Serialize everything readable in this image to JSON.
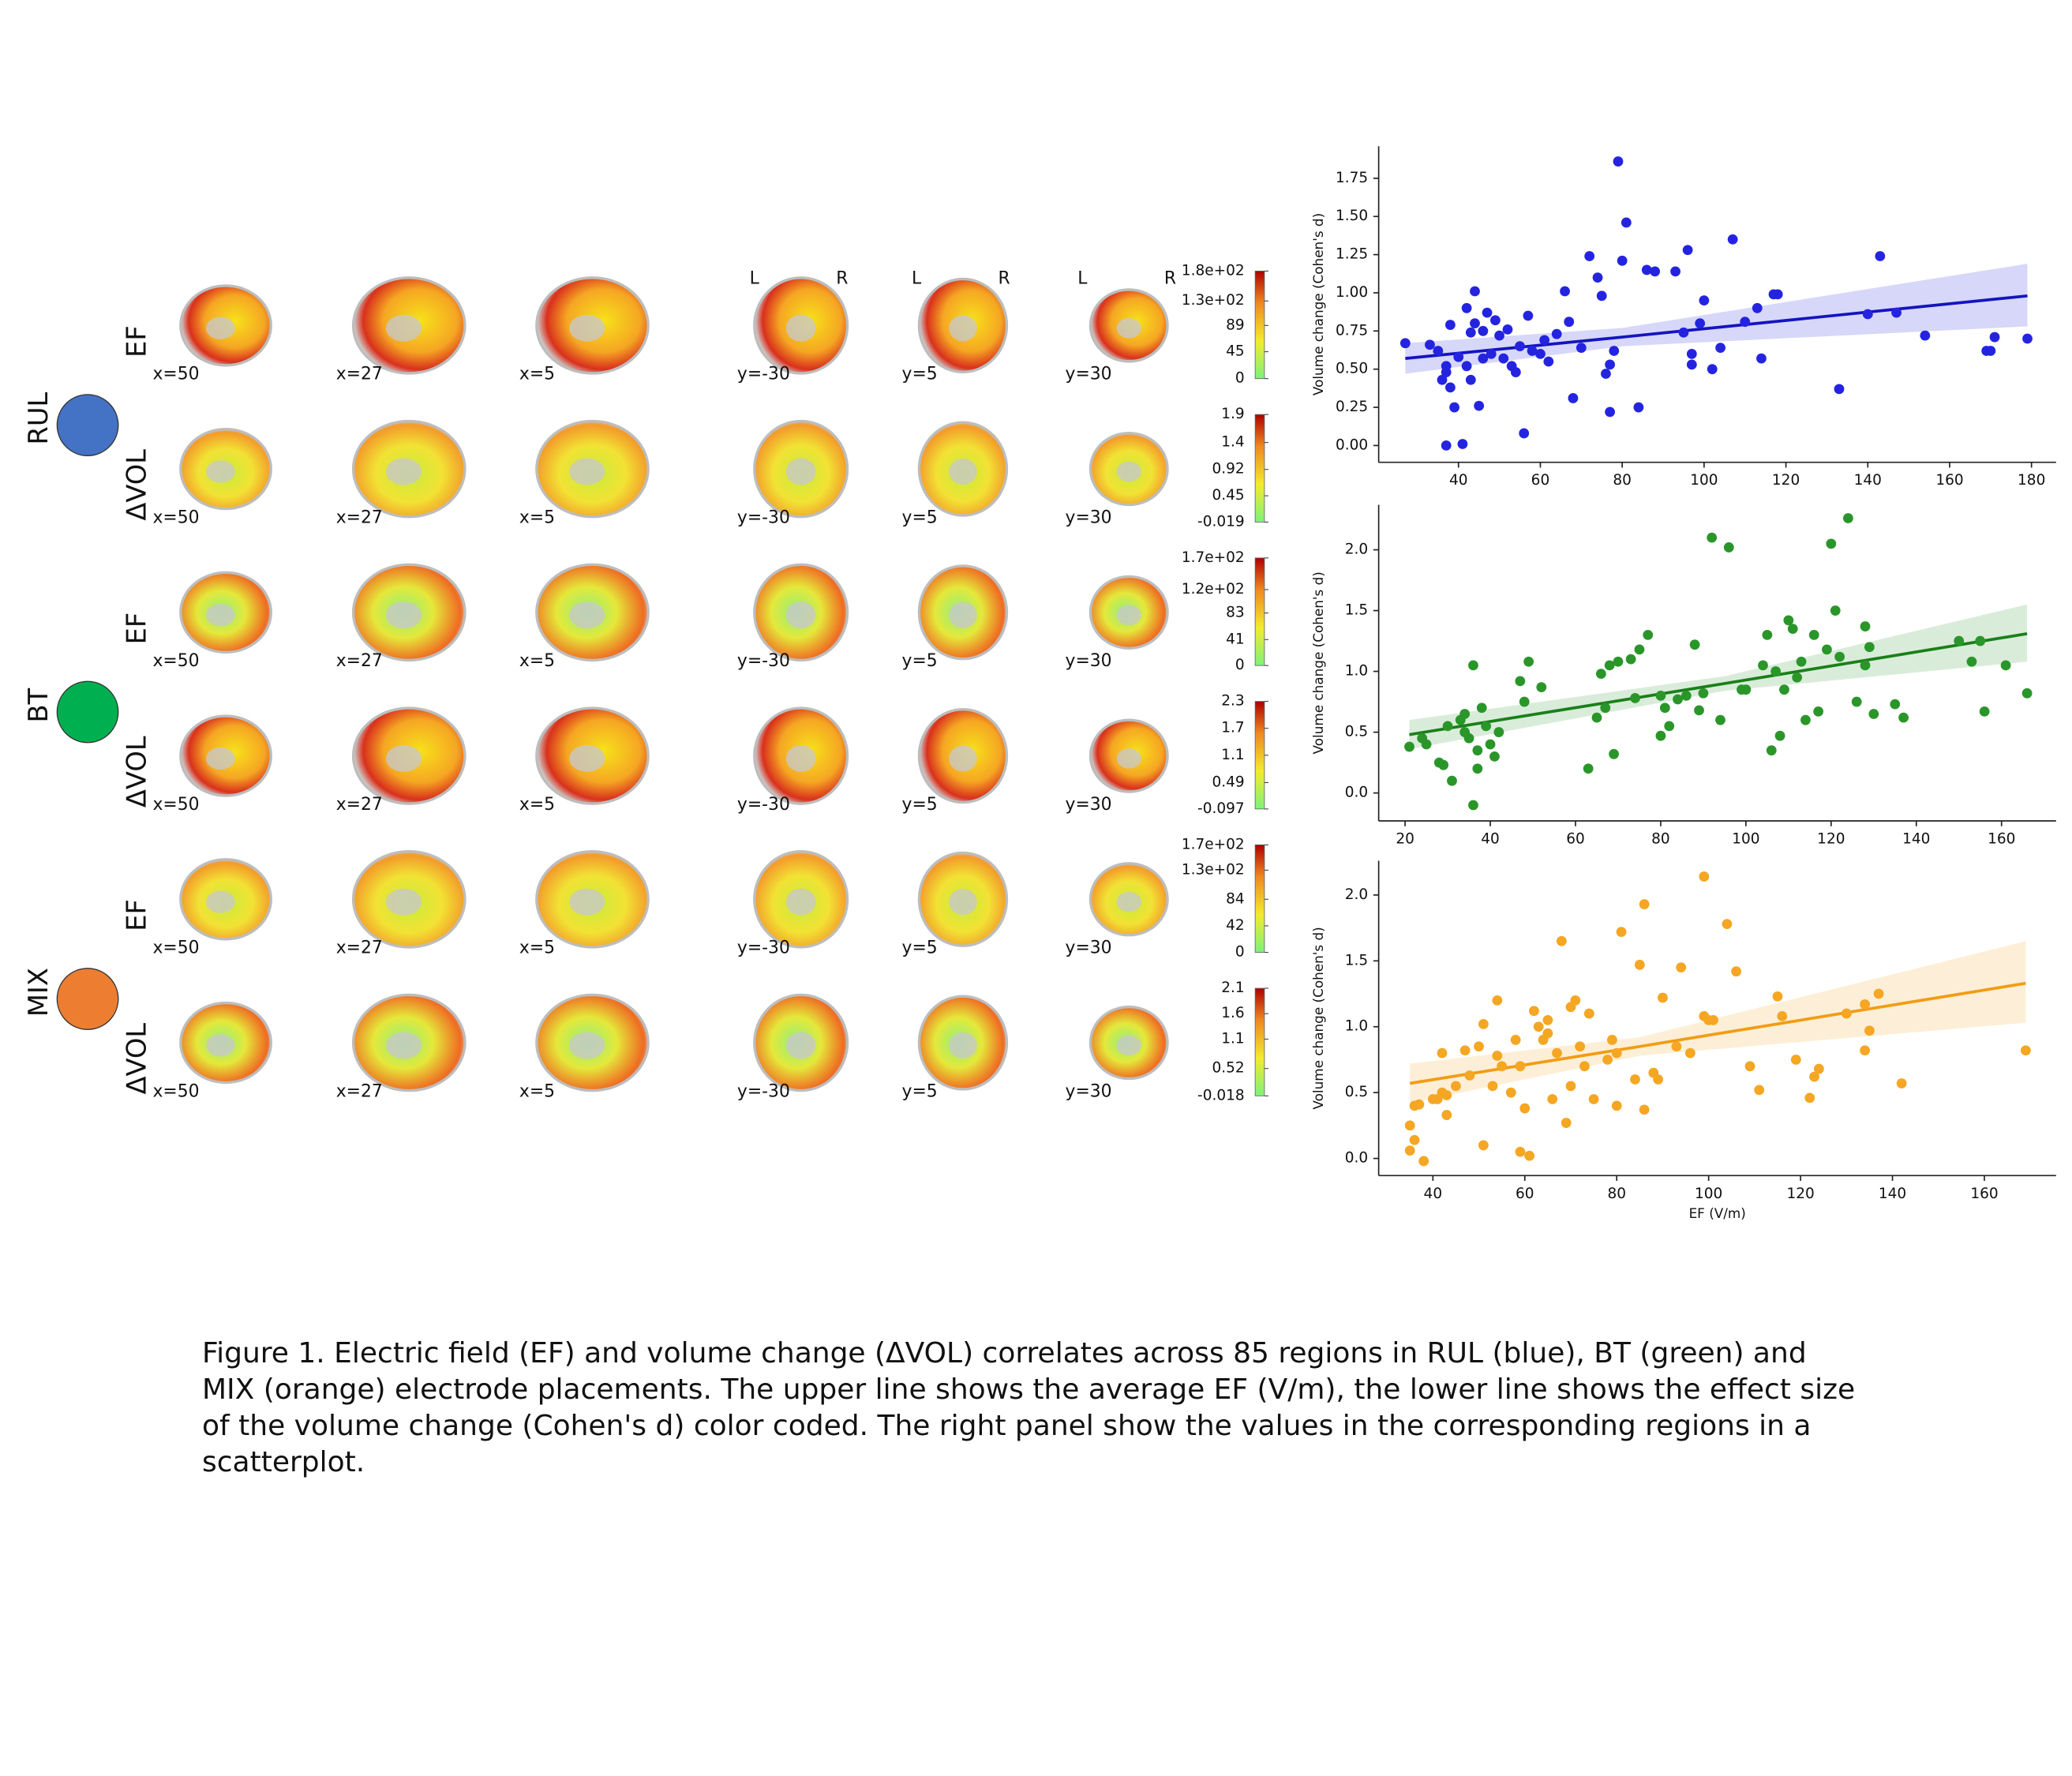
{
  "figure": {
    "slice_labels": [
      "x=50",
      "x=27",
      "x=5",
      "y=-30",
      "y=5",
      "y=30"
    ],
    "orientation_labels": [
      "L",
      "R"
    ],
    "groups": [
      {
        "label": "RUL",
        "color": "#4472c4",
        "rows": [
          {
            "label": "EF",
            "colorbar": {
              "ticks": [
                0,
                45,
                89,
                {
                  "value": 130,
                  "label": "1.3e+02"
                },
                {
                  "value": 180,
                  "label": "1.8e+02"
                }
              ]
            }
          },
          {
            "label": "ΔVOL",
            "colorbar": {
              "ticks": [
                -0.019,
                0.45,
                0.92,
                1.4,
                1.9
              ]
            }
          }
        ]
      },
      {
        "label": "BT",
        "color": "#00b050",
        "rows": [
          {
            "label": "EF",
            "colorbar": {
              "ticks": [
                0,
                41,
                83,
                {
                  "value": 120,
                  "label": "1.2e+02"
                },
                {
                  "value": 170,
                  "label": "1.7e+02"
                }
              ]
            }
          },
          {
            "label": "ΔVOL",
            "colorbar": {
              "ticks": [
                -0.097,
                0.49,
                1.1,
                1.7,
                2.3
              ]
            }
          }
        ]
      },
      {
        "label": "MIX",
        "color": "#ed7d31",
        "rows": [
          {
            "label": "EF",
            "colorbar": {
              "ticks": [
                0,
                42,
                84,
                {
                  "value": 130,
                  "label": "1.3e+02"
                },
                {
                  "value": 170,
                  "label": "1.7e+02"
                }
              ]
            }
          },
          {
            "label": "ΔVOL",
            "colorbar": {
              "ticks": [
                -0.018,
                0.52,
                1.1,
                1.6,
                2.1
              ]
            }
          }
        ]
      }
    ]
  },
  "chart_data": [
    {
      "type": "scatter",
      "ylabel": "Volume change (Cohen's d)",
      "color": "#2424e0",
      "line_color": "#1414c0",
      "xlim": [
        20.5,
        186
      ],
      "ylim": [
        -0.11,
        1.96
      ],
      "xticks": [
        40,
        60,
        80,
        100,
        120,
        140,
        160,
        180
      ],
      "yticks": [
        {
          "value": 0,
          "label": "0.00"
        },
        0.25,
        {
          "value": 0.5,
          "label": "0.50"
        },
        0.75,
        {
          "value": 1,
          "label": "1.00"
        },
        1.25,
        {
          "value": 1.5,
          "label": "1.50"
        },
        1.75
      ],
      "x": [
        27,
        33,
        35,
        36,
        37,
        37,
        37,
        38,
        39,
        38,
        40,
        41,
        42,
        42,
        43,
        43,
        44,
        44,
        45,
        46,
        46,
        47,
        48,
        49,
        50,
        51,
        52,
        53,
        54,
        55,
        56,
        57,
        58,
        60,
        61,
        62,
        64,
        66,
        67,
        68,
        70,
        72,
        74,
        75,
        76,
        77,
        77,
        78,
        79,
        80,
        81,
        84,
        86,
        88,
        93,
        95,
        96,
        97,
        97,
        99,
        100,
        102,
        104,
        107,
        110,
        113,
        114,
        117,
        118,
        133,
        140,
        143,
        147,
        154,
        169,
        170,
        171,
        179
      ],
      "y": [
        0.67,
        0.66,
        0.62,
        0.43,
        0.52,
        0.48,
        0.0,
        0.38,
        0.25,
        0.79,
        0.58,
        0.01,
        0.52,
        0.9,
        0.43,
        0.74,
        1.01,
        0.8,
        0.26,
        0.57,
        0.75,
        0.87,
        0.6,
        0.82,
        0.72,
        0.57,
        0.76,
        0.52,
        0.48,
        0.65,
        0.08,
        0.85,
        0.62,
        0.6,
        0.69,
        0.55,
        0.73,
        1.01,
        0.81,
        0.31,
        0.64,
        1.24,
        1.1,
        0.98,
        0.47,
        0.22,
        0.53,
        0.62,
        1.86,
        1.21,
        1.46,
        0.25,
        1.15,
        1.14,
        1.14,
        0.74,
        1.28,
        0.6,
        0.53,
        0.8,
        0.95,
        0.5,
        0.64,
        1.35,
        0.81,
        0.9,
        0.57,
        0.99,
        0.99,
        0.37,
        0.86,
        1.24,
        0.87,
        0.72,
        0.62,
        0.62,
        0.71,
        0.7
      ],
      "fit": {
        "x": [
          27,
          80,
          179
        ],
        "y": [
          0.57,
          0.71,
          0.98
        ],
        "ci_lower": [
          0.47,
          0.65,
          0.78
        ],
        "ci_upper": [
          0.67,
          0.77,
          1.19
        ]
      }
    },
    {
      "type": "scatter",
      "ylabel": "Volume change (Cohen's d)",
      "color": "#2a962a",
      "line_color": "#1a7f1a",
      "xlim": [
        13.8,
        172.8
      ],
      "ylim": [
        -0.23,
        2.37
      ],
      "xticks": [
        20,
        40,
        60,
        80,
        100,
        120,
        140,
        160
      ],
      "yticks": [
        {
          "value": 0,
          "label": "0.0"
        },
        0.5,
        {
          "value": 1,
          "label": "1.0"
        },
        1.5,
        {
          "value": 2,
          "label": "2.0"
        }
      ],
      "x": [
        21,
        24,
        25,
        28,
        29,
        30,
        31,
        33,
        34,
        34,
        35,
        36,
        36,
        37,
        37,
        38,
        39,
        40,
        41,
        42,
        47,
        48,
        49,
        52,
        63,
        65,
        66,
        67,
        68,
        69,
        70,
        73,
        74,
        75,
        77,
        80,
        80,
        81,
        82,
        84,
        86,
        88,
        89,
        90,
        92,
        94,
        96,
        99,
        100,
        104,
        105,
        106,
        107,
        108,
        109,
        110,
        111,
        112,
        113,
        114,
        116,
        117,
        119,
        120,
        121,
        122,
        124,
        126,
        128,
        128,
        129,
        130,
        135,
        137,
        150,
        153,
        155,
        156,
        161,
        166
      ],
      "y": [
        0.38,
        0.45,
        0.4,
        0.25,
        0.23,
        0.55,
        0.1,
        0.6,
        0.5,
        0.65,
        0.45,
        1.05,
        -0.1,
        0.2,
        0.35,
        0.7,
        0.55,
        0.4,
        0.3,
        0.5,
        0.92,
        0.75,
        1.08,
        0.87,
        0.2,
        0.62,
        0.98,
        0.7,
        1.05,
        0.32,
        1.08,
        1.1,
        0.78,
        1.18,
        1.3,
        0.8,
        0.47,
        0.7,
        0.55,
        0.77,
        0.8,
        1.22,
        0.68,
        0.82,
        2.1,
        0.6,
        2.02,
        0.85,
        0.85,
        1.05,
        1.3,
        0.35,
        1.0,
        0.47,
        0.85,
        1.42,
        1.35,
        0.95,
        1.08,
        0.6,
        1.3,
        0.67,
        1.18,
        2.05,
        1.5,
        1.12,
        2.26,
        0.75,
        1.37,
        1.05,
        1.2,
        0.65,
        0.73,
        0.62,
        1.25,
        1.08,
        1.25,
        0.67,
        1.05,
        0.82
      ],
      "fit": {
        "x": [
          21,
          95,
          166
        ],
        "y": [
          0.48,
          0.9,
          1.31
        ],
        "ci_lower": [
          0.36,
          0.84,
          1.08
        ],
        "ci_upper": [
          0.6,
          0.96,
          1.55
        ]
      }
    },
    {
      "type": "scatter",
      "ylabel": "Volume change (Cohen's d)",
      "xlabel": "EF (V/m)",
      "color": "#f5a623",
      "line_color": "#f29c12",
      "xlim": [
        28.2,
        175.6
      ],
      "ylim": [
        -0.13,
        2.26
      ],
      "xticks": [
        40,
        60,
        80,
        100,
        120,
        140,
        160
      ],
      "yticks": [
        {
          "value": 0,
          "label": "0.0"
        },
        0.5,
        {
          "value": 1,
          "label": "1.0"
        },
        1.5,
        {
          "value": 2,
          "label": "2.0"
        }
      ],
      "x": [
        35,
        35,
        36,
        36,
        37,
        38,
        40,
        41,
        42,
        42,
        43,
        43,
        45,
        47,
        48,
        50,
        51,
        51,
        53,
        54,
        54,
        55,
        57,
        58,
        59,
        59,
        60,
        61,
        62,
        63,
        64,
        65,
        65,
        66,
        67,
        68,
        69,
        70,
        70,
        71,
        72,
        73,
        74,
        75,
        78,
        79,
        80,
        80,
        81,
        84,
        85,
        86,
        86,
        88,
        89,
        90,
        93,
        94,
        96,
        99,
        99,
        100,
        101,
        104,
        106,
        109,
        111,
        115,
        116,
        119,
        122,
        123,
        124,
        130,
        134,
        134,
        135,
        137,
        142,
        169
      ],
      "y": [
        0.25,
        0.06,
        0.4,
        0.14,
        0.41,
        -0.02,
        0.45,
        0.45,
        0.8,
        0.5,
        0.33,
        0.48,
        0.55,
        0.82,
        0.63,
        0.85,
        1.02,
        0.1,
        0.55,
        1.2,
        0.78,
        0.7,
        0.5,
        0.9,
        0.05,
        0.7,
        0.38,
        0.02,
        1.12,
        1.0,
        0.9,
        1.05,
        0.95,
        0.45,
        0.8,
        1.65,
        0.27,
        0.55,
        1.15,
        1.2,
        0.85,
        0.7,
        1.1,
        0.45,
        0.75,
        0.9,
        0.8,
        0.4,
        1.72,
        0.6,
        1.47,
        0.37,
        1.93,
        0.65,
        0.6,
        1.22,
        0.85,
        1.45,
        0.8,
        2.14,
        1.08,
        1.05,
        1.05,
        1.78,
        1.42,
        0.7,
        0.52,
        1.23,
        1.08,
        0.75,
        0.46,
        0.62,
        0.68,
        1.1,
        1.17,
        0.82,
        0.97,
        1.25,
        0.57,
        0.82
      ],
      "fit": {
        "x": [
          35,
          85,
          169
        ],
        "y": [
          0.57,
          0.85,
          1.33
        ],
        "ci_lower": [
          0.42,
          0.78,
          1.03
        ],
        "ci_upper": [
          0.72,
          0.92,
          1.65
        ]
      }
    }
  ],
  "caption": "Figure 1. Electric field (EF) and volume change (ΔVOL) correlates across 85 regions in RUL (blue), BT (green) and MIX (orange) electrode placements. The upper line shows the average EF (V/m), the lower line shows the effect size of the volume change (Cohen's d) color coded.  The right panel show the values in the corresponding regions in a scatterplot."
}
